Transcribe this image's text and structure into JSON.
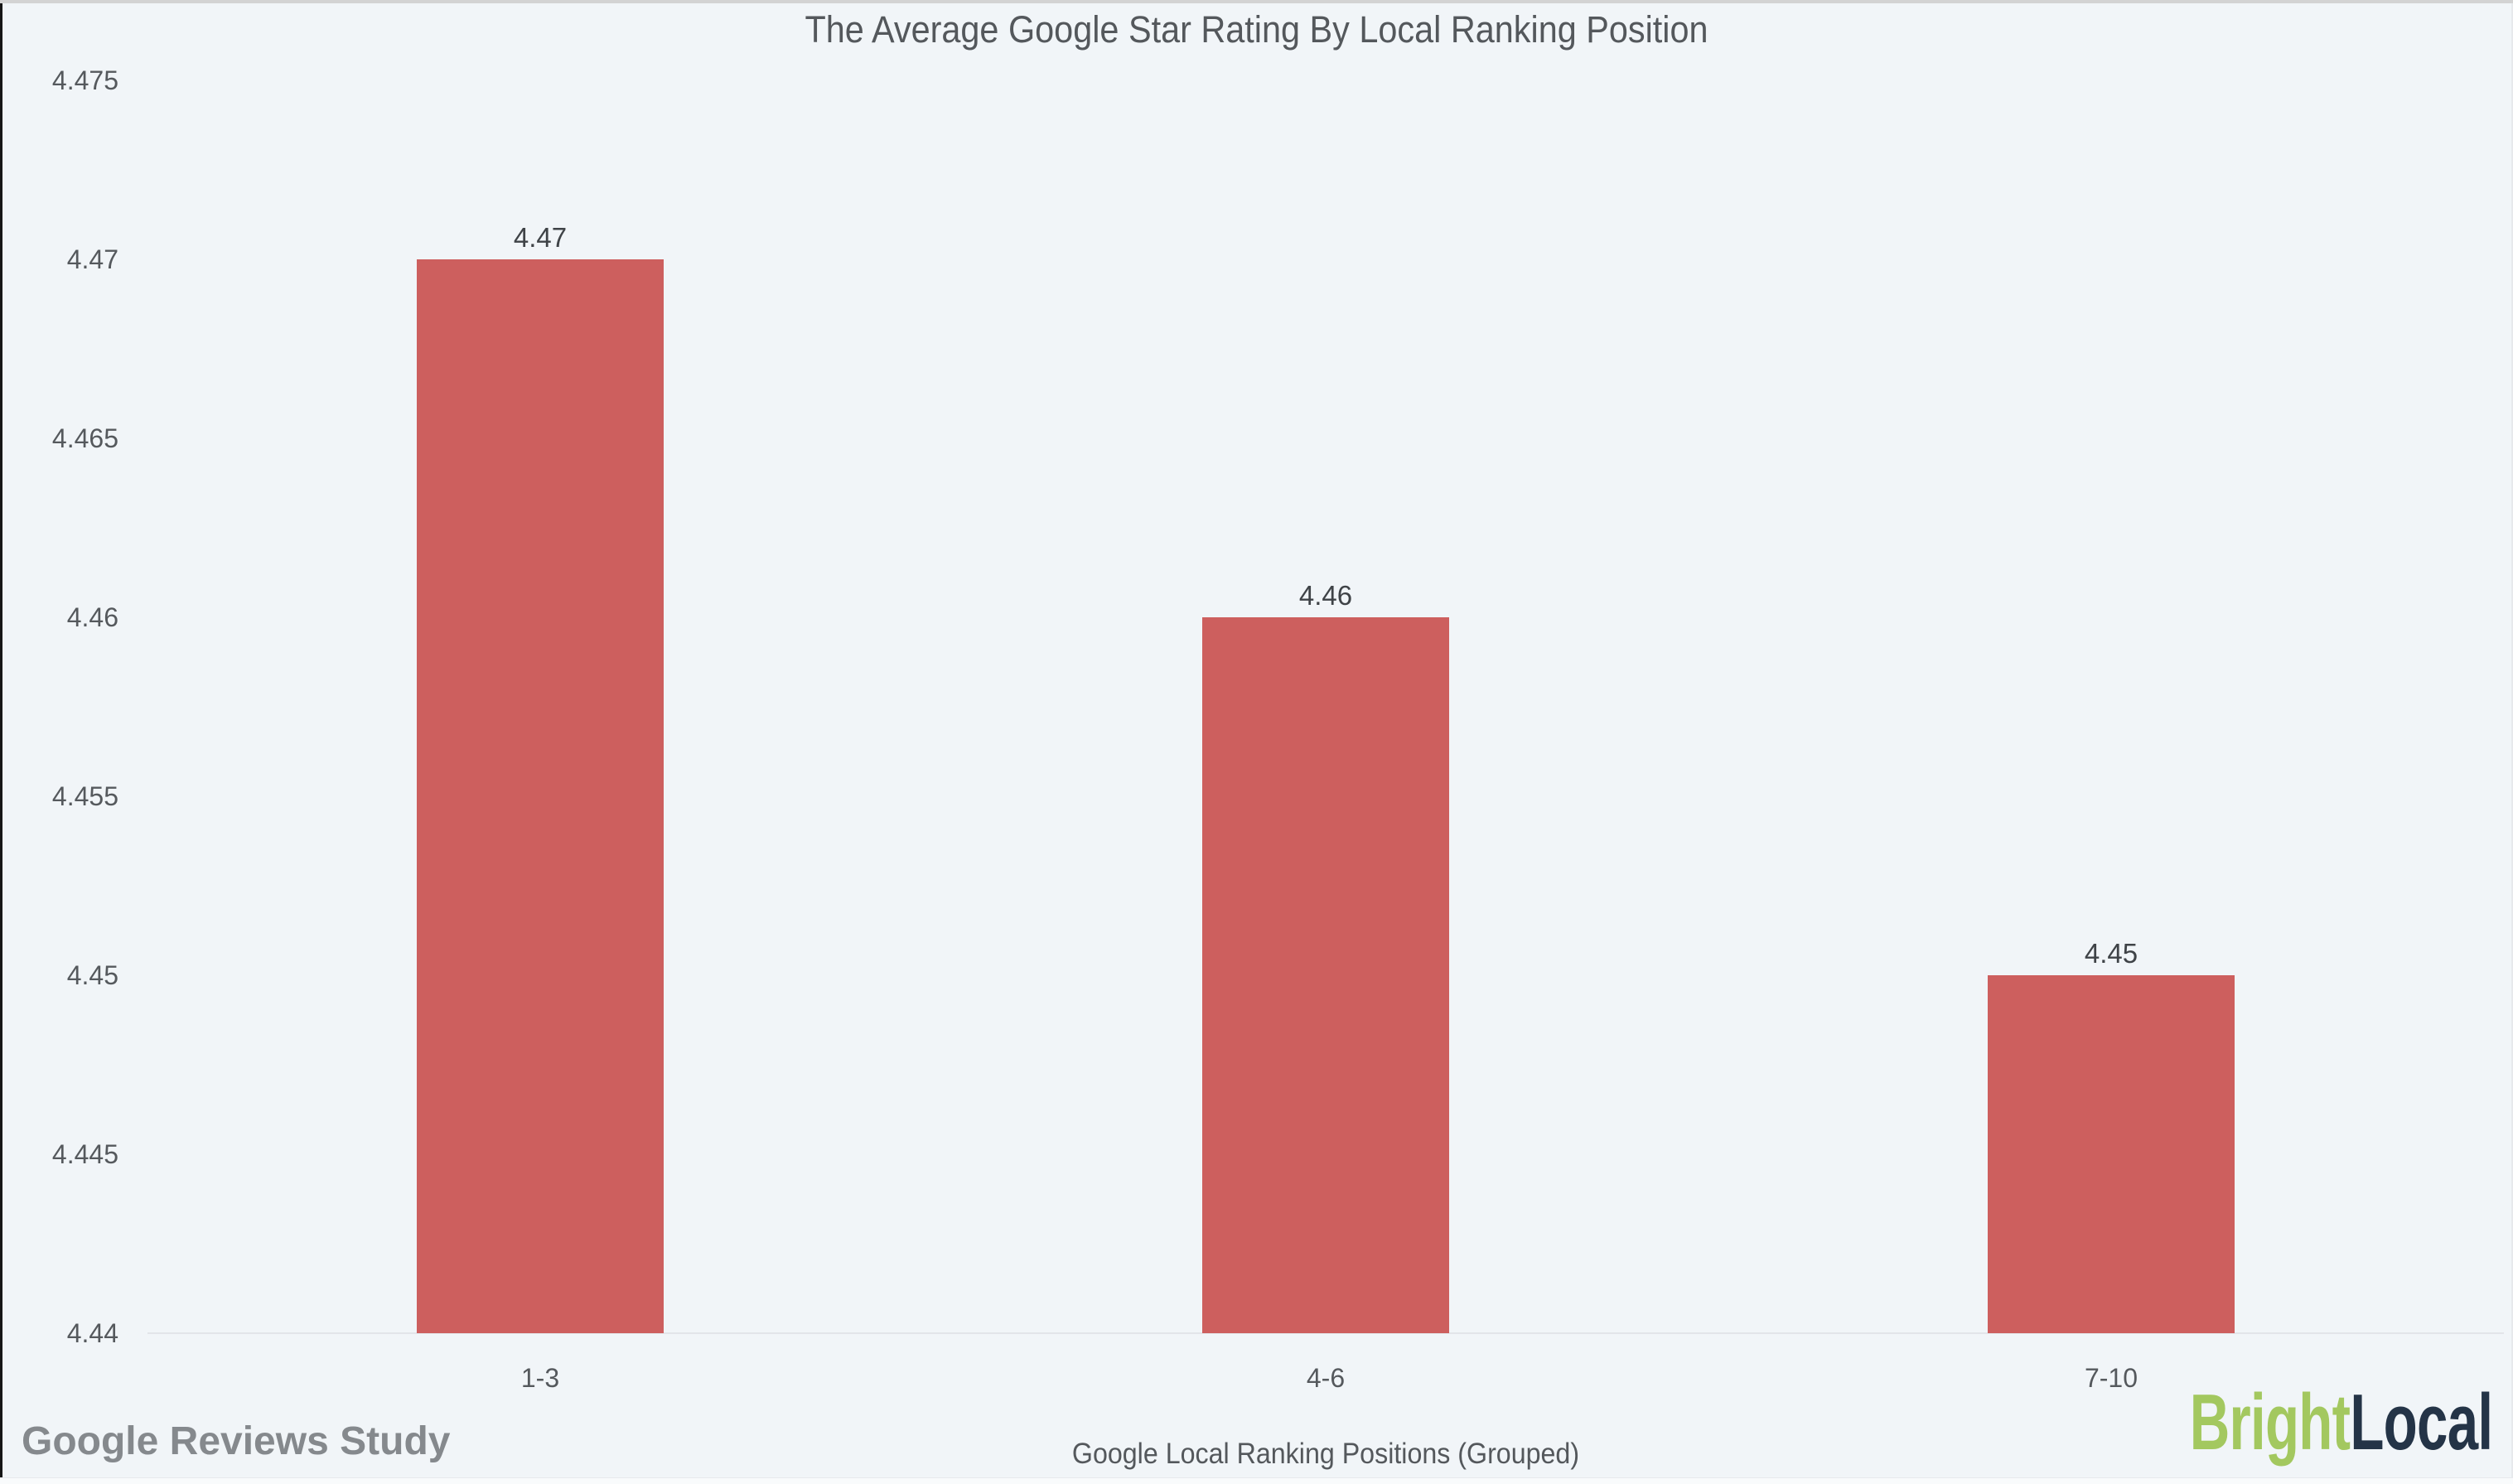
{
  "window": {
    "edge_top_color": "#d3d3d3",
    "edge_left_color": "#161616"
  },
  "footer": {
    "source": "Google Reviews Study"
  },
  "brand": {
    "text_green": "Bright",
    "text_navy": "Local",
    "green_color": "#a3c85f",
    "navy_color": "#243447"
  },
  "chart_data": {
    "type": "bar",
    "title": "The Average Google Star Rating By Local Ranking Position",
    "xlabel": "Google Local Ranking Positions (Grouped)",
    "ylabel": "",
    "categories": [
      "1-3",
      "4-6",
      "7-10"
    ],
    "values": [
      4.47,
      4.46,
      4.45
    ],
    "value_labels": [
      "4.47",
      "4.46",
      "4.45"
    ],
    "y_ticks": [
      "4.44",
      "4.445",
      "4.45",
      "4.455",
      "4.46",
      "4.465",
      "4.47",
      "4.475"
    ],
    "ylim": [
      4.44,
      4.475
    ],
    "grid": "baseline-only",
    "legend": "none",
    "bar_color": "#cd5f5e",
    "background_color": "#f1f5f8",
    "text_color": "#55595d",
    "baseline_color": "#e2e5e9"
  }
}
